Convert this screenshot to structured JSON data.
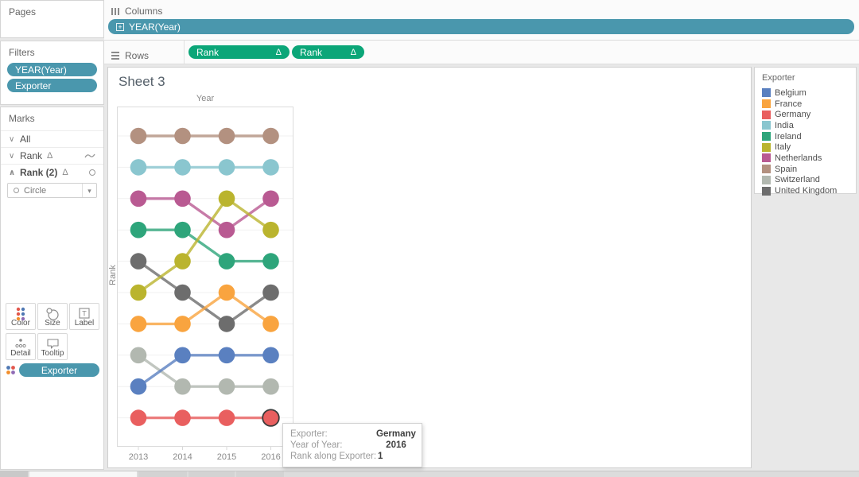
{
  "shelves": {
    "columns_label": "Columns",
    "columns_pill": "YEAR(Year)",
    "rows_label": "Rows",
    "rows_pills": [
      {
        "label": "Rank",
        "delta": "Δ"
      },
      {
        "label": "Rank",
        "delta": "Δ"
      }
    ]
  },
  "sidebar": {
    "pages": {
      "title": "Pages"
    },
    "filters": {
      "title": "Filters",
      "pills": [
        "YEAR(Year)",
        "Exporter"
      ]
    },
    "marks": {
      "title": "Marks",
      "cards": [
        {
          "label": "All",
          "delta": "",
          "mark_icon": ""
        },
        {
          "label": "Rank",
          "delta": "Δ",
          "mark_icon": "line"
        },
        {
          "label": "Rank (2)",
          "delta": "Δ",
          "mark_icon": "circle"
        }
      ],
      "mark_type": "Circle",
      "buttons": [
        "Color",
        "Size",
        "Label",
        "Detail",
        "Tooltip"
      ],
      "encoding_pill": "Exporter"
    }
  },
  "sheet": {
    "title": "Sheet 3"
  },
  "legend": {
    "title": "Exporter",
    "items": [
      {
        "label": "Belgium",
        "color": "#5a80c0"
      },
      {
        "label": "France",
        "color": "#f9a43f"
      },
      {
        "label": "Germany",
        "color": "#e95f5f"
      },
      {
        "label": "India",
        "color": "#8ac6cf"
      },
      {
        "label": "Ireland",
        "color": "#2ea57b"
      },
      {
        "label": "Italy",
        "color": "#bab42e"
      },
      {
        "label": "Netherlands",
        "color": "#b95a92"
      },
      {
        "label": "Spain",
        "color": "#b39180"
      },
      {
        "label": "Switzerland",
        "color": "#b2b8b0"
      },
      {
        "label": "United Kingdom",
        "color": "#6d6d6d"
      }
    ]
  },
  "tooltip": {
    "rows": [
      {
        "label": "Exporter:",
        "value": "Germany"
      },
      {
        "label": "Year of Year:",
        "value": "2016"
      },
      {
        "label": "Rank along Exporter:",
        "value": "1"
      }
    ]
  },
  "chart_data": {
    "type": "line",
    "subtype": "bump",
    "title": "Sheet 3",
    "x_title": "Year",
    "y_title": "Rank",
    "x": [
      "2013",
      "2014",
      "2015",
      "2016"
    ],
    "y_meaning": "Rank along Exporter (1 = bottom row, 10 = top row)",
    "ylim": [
      1,
      10
    ],
    "grid": "faint-horizontal",
    "legend_position": "right",
    "series": [
      {
        "name": "Spain",
        "color": "#b39180",
        "ranks": [
          10,
          10,
          10,
          10
        ]
      },
      {
        "name": "India",
        "color": "#8ac6cf",
        "ranks": [
          9,
          9,
          9,
          9
        ]
      },
      {
        "name": "Netherlands",
        "color": "#b95a92",
        "ranks": [
          8,
          8,
          7,
          8
        ]
      },
      {
        "name": "Ireland",
        "color": "#2ea57b",
        "ranks": [
          7,
          7,
          6,
          6
        ]
      },
      {
        "name": "United Kingdom",
        "color": "#6d6d6d",
        "ranks": [
          6,
          5,
          4,
          5
        ]
      },
      {
        "name": "Italy",
        "color": "#bab42e",
        "ranks": [
          5,
          6,
          8,
          7
        ]
      },
      {
        "name": "France",
        "color": "#f9a43f",
        "ranks": [
          4,
          4,
          5,
          4
        ]
      },
      {
        "name": "Switzerland",
        "color": "#b2b8b0",
        "ranks": [
          3,
          2,
          2,
          2
        ]
      },
      {
        "name": "Belgium",
        "color": "#5a80c0",
        "ranks": [
          2,
          3,
          3,
          3
        ]
      },
      {
        "name": "Germany",
        "color": "#e95f5f",
        "ranks": [
          1,
          1,
          1,
          1
        ]
      }
    ],
    "selected_mark": {
      "series": "Germany",
      "x": "2016",
      "rank": 1
    }
  },
  "colors": {
    "pill_dimension": "#4a97ad",
    "pill_measure": "#0ba678",
    "canvas_bg": "#e8e8e8"
  }
}
